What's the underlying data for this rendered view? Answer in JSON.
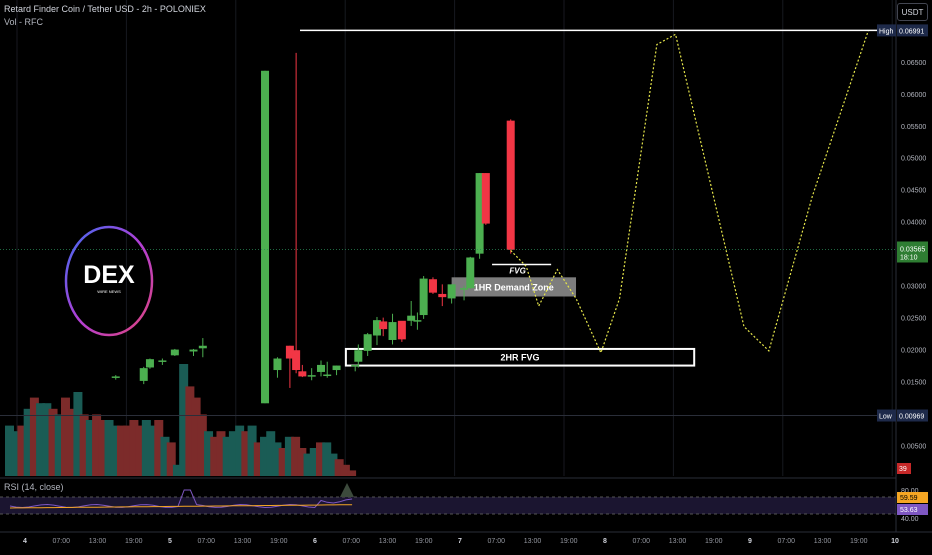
{
  "header": {
    "title": "Retard Finder Coin / Tether USD - 2h - POLONIEX",
    "volume_label": "Vol - RFC",
    "currency": "USDT",
    "rsi_label": "RSI (14, close)"
  },
  "logo": {
    "text": "DEX",
    "subtext": "WIRE NEWS"
  },
  "chart_data": {
    "type": "candlestick",
    "price_axis": {
      "ticks": [
        "0.06500",
        "0.06000",
        "0.05500",
        "0.05000",
        "0.04500",
        "0.04000",
        "0.03000",
        "0.02500",
        "0.02000",
        "0.01500",
        "0.00500"
      ],
      "range": [
        0.003,
        0.0735
      ]
    },
    "markers": {
      "high": {
        "label": "High",
        "value": "0.06991",
        "price": 0.06991
      },
      "low": {
        "label": "Low",
        "value": "0.00969",
        "price": 0.00969
      },
      "last": {
        "value": "0.03565",
        "countdown": "18:10",
        "price": 0.03565
      },
      "volume": "39"
    },
    "time_axis": [
      "4",
      "07:00",
      "13:00",
      "19:00",
      "5",
      "07:00",
      "13:00",
      "19:00",
      "6",
      "07:00",
      "13:00",
      "19:00",
      "7",
      "07:00",
      "13:00",
      "19:00",
      "8",
      "07:00",
      "13:00",
      "19:00",
      "9",
      "07:00",
      "13:00",
      "19:00",
      "10"
    ],
    "zones": [
      {
        "label": "FVG",
        "type": "line",
        "x0": 77.5,
        "x1": 87,
        "price": 0.0333
      },
      {
        "label": "1HR Demand Zone",
        "type": "box",
        "x0": 71,
        "x1": 91,
        "top": 0.0313,
        "bottom": 0.0283
      },
      {
        "label": "2HR FVG",
        "type": "box",
        "x0": 54,
        "x1": 110,
        "top": 0.0201,
        "bottom": 0.0175
      }
    ],
    "candles": [
      {
        "x": 17.0,
        "o": 0.0156,
        "h": 0.016,
        "l": 0.0153,
        "c": 0.0158
      },
      {
        "x": 21.5,
        "o": 0.0151,
        "h": 0.0173,
        "l": 0.0146,
        "c": 0.0171
      },
      {
        "x": 22.5,
        "o": 0.0172,
        "h": 0.0186,
        "l": 0.017,
        "c": 0.0185
      },
      {
        "x": 24.5,
        "o": 0.0181,
        "h": 0.0186,
        "l": 0.0176,
        "c": 0.0183
      },
      {
        "x": 26.5,
        "o": 0.0191,
        "h": 0.0201,
        "l": 0.019,
        "c": 0.02
      },
      {
        "x": 29.5,
        "o": 0.0197,
        "h": 0.0201,
        "l": 0.019,
        "c": 0.02
      },
      {
        "x": 31.0,
        "o": 0.0202,
        "h": 0.0218,
        "l": 0.0188,
        "c": 0.0206
      },
      {
        "x": 41.0,
        "o": 0.0116,
        "h": 0.0636,
        "l": 0.0116,
        "c": 0.0636
      },
      {
        "x": 43.0,
        "o": 0.0168,
        "h": 0.0188,
        "l": 0.0156,
        "c": 0.0186
      },
      {
        "x": 45.0,
        "o": 0.0206,
        "h": 0.0206,
        "l": 0.014,
        "c": 0.0186
      },
      {
        "x": 46.0,
        "o": 0.0199,
        "h": 0.0664,
        "l": 0.0163,
        "c": 0.0168
      },
      {
        "x": 47.0,
        "o": 0.0166,
        "h": 0.0176,
        "l": 0.0157,
        "c": 0.0158
      },
      {
        "x": 48.5,
        "o": 0.0158,
        "h": 0.0171,
        "l": 0.0152,
        "c": 0.016
      },
      {
        "x": 50.0,
        "o": 0.0165,
        "h": 0.0183,
        "l": 0.0158,
        "c": 0.0176
      },
      {
        "x": 51.0,
        "o": 0.0159,
        "h": 0.0181,
        "l": 0.0156,
        "c": 0.0161
      },
      {
        "x": 52.5,
        "o": 0.0168,
        "h": 0.0175,
        "l": 0.016,
        "c": 0.0175
      },
      {
        "x": 55.5,
        "o": 0.0175,
        "h": 0.0176,
        "l": 0.0166,
        "c": 0.0176
      },
      {
        "x": 56.0,
        "o": 0.0181,
        "h": 0.0208,
        "l": 0.0172,
        "c": 0.0199
      },
      {
        "x": 57.5,
        "o": 0.0198,
        "h": 0.0226,
        "l": 0.019,
        "c": 0.0224
      },
      {
        "x": 59.0,
        "o": 0.0222,
        "h": 0.0251,
        "l": 0.0207,
        "c": 0.0246
      },
      {
        "x": 60.0,
        "o": 0.0244,
        "h": 0.025,
        "l": 0.0221,
        "c": 0.0232
      },
      {
        "x": 61.5,
        "o": 0.0215,
        "h": 0.0256,
        "l": 0.0208,
        "c": 0.0243
      },
      {
        "x": 63.0,
        "o": 0.0245,
        "h": 0.0244,
        "l": 0.0212,
        "c": 0.0216
      },
      {
        "x": 64.5,
        "o": 0.0245,
        "h": 0.0276,
        "l": 0.0237,
        "c": 0.0253
      },
      {
        "x": 65.5,
        "o": 0.0245,
        "h": 0.0258,
        "l": 0.0231,
        "c": 0.0246
      },
      {
        "x": 66.5,
        "o": 0.0254,
        "h": 0.0315,
        "l": 0.0248,
        "c": 0.0311
      },
      {
        "x": 68.0,
        "o": 0.031,
        "h": 0.0313,
        "l": 0.0287,
        "c": 0.0289
      },
      {
        "x": 69.5,
        "o": 0.0287,
        "h": 0.0302,
        "l": 0.0268,
        "c": 0.0282
      },
      {
        "x": 71.0,
        "o": 0.028,
        "h": 0.0302,
        "l": 0.0272,
        "c": 0.0302
      },
      {
        "x": 73.0,
        "o": 0.0296,
        "h": 0.03,
        "l": 0.0277,
        "c": 0.0296
      },
      {
        "x": 74.0,
        "o": 0.0296,
        "h": 0.0345,
        "l": 0.0295,
        "c": 0.0344
      },
      {
        "x": 75.5,
        "o": 0.035,
        "h": 0.0476,
        "l": 0.0342,
        "c": 0.0476
      },
      {
        "x": 76.5,
        "o": 0.0476,
        "h": 0.0476,
        "l": 0.0395,
        "c": 0.0397
      },
      {
        "x": 80.5,
        "o": 0.0558,
        "h": 0.056,
        "l": 0.035,
        "c": 0.0356
      }
    ],
    "projection": [
      [
        80.5,
        0.0355
      ],
      [
        83,
        0.033
      ],
      [
        85,
        0.0268
      ],
      [
        88,
        0.0325
      ],
      [
        91,
        0.028
      ],
      [
        95,
        0.0195
      ],
      [
        98,
        0.028
      ],
      [
        104,
        0.0677
      ],
      [
        107,
        0.0693
      ],
      [
        118,
        0.0236
      ],
      [
        122,
        0.0198
      ],
      [
        129,
        0.044
      ],
      [
        138,
        0.0699
      ]
    ],
    "volumes": [
      0.45,
      0.4,
      0.45,
      0.6,
      0.7,
      0.65,
      0.65,
      0.6,
      0.55,
      0.7,
      0.6,
      0.75,
      0.55,
      0.5,
      0.55,
      0.5,
      0.5,
      0.45,
      0.45,
      0.45,
      0.5,
      0.45,
      0.5,
      0.45,
      0.5,
      0.35,
      0.3,
      0.1,
      1.0,
      0.8,
      0.7,
      0.55,
      0.4,
      0.35,
      0.4,
      0.35,
      0.4,
      0.45,
      0.4,
      0.45,
      0.3,
      0.35,
      0.4,
      0.3,
      0.25,
      0.35,
      0.35,
      0.25,
      0.2,
      0.25,
      0.3,
      0.3,
      0.2,
      0.15,
      0.1,
      0.05
    ],
    "rsi": {
      "value_1": "59.59",
      "value_2": "53.63",
      "ticks": [
        "80.00",
        "40.00"
      ],
      "overbought": 70,
      "oversold": 30
    }
  }
}
